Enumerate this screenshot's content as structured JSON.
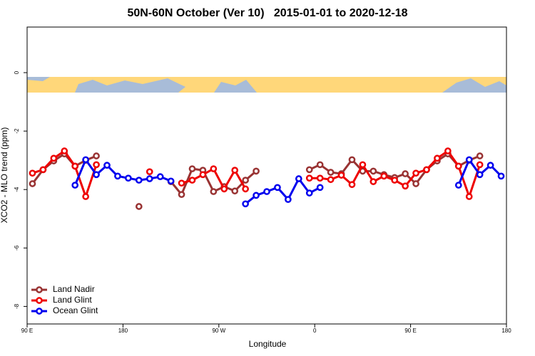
{
  "chart_data": {
    "type": "line",
    "title": "50N-60N October (Ver 10)   2015-01-01 to 2020-12-18",
    "x_label": "Longitude",
    "y_label": "XCO2 - MLO trend (ppm)",
    "x": [
      95,
      105,
      115,
      125,
      135,
      145,
      155,
      165,
      175,
      185,
      195,
      205,
      215,
      225,
      235,
      245,
      255,
      265,
      275,
      285,
      295,
      305,
      315,
      325,
      335,
      345,
      355,
      365,
      375,
      385,
      395,
      405,
      415,
      425,
      435,
      445,
      455,
      465,
      475,
      485,
      495,
      505,
      515,
      525,
      535
    ],
    "series": [
      {
        "name": "Land Nadir",
        "color": "#993333",
        "values": [
          -3.8,
          -3.32,
          -3.02,
          -2.78,
          -3.2,
          -3.0,
          -2.85,
          null,
          null,
          null,
          -4.58,
          null,
          null,
          -3.73,
          -4.17,
          -3.29,
          -3.34,
          -4.07,
          -3.9,
          -4.05,
          -3.68,
          -3.37,
          null,
          null,
          null,
          null,
          -3.32,
          -3.15,
          -3.41,
          -3.46,
          -2.98,
          -3.37,
          -3.37,
          -3.49,
          -3.59,
          -3.46,
          -3.8,
          -3.32,
          -3.02,
          -2.78,
          -3.2,
          -3.0,
          -2.85,
          null,
          null
        ]
      },
      {
        "name": "Land Glint",
        "color": "#ee0000",
        "values": [
          -3.44,
          -3.32,
          -2.93,
          -2.68,
          -3.2,
          -4.24,
          -3.15,
          null,
          null,
          null,
          null,
          -3.39,
          null,
          null,
          -3.78,
          -3.68,
          -3.49,
          -3.29,
          -3.98,
          -3.34,
          -3.98,
          null,
          null,
          null,
          null,
          null,
          -3.61,
          -3.61,
          -3.66,
          -3.51,
          -3.83,
          -3.15,
          -3.73,
          -3.54,
          -3.68,
          -3.88,
          -3.44,
          -3.32,
          -2.93,
          -2.68,
          -3.2,
          -4.24,
          -3.15,
          null,
          null
        ]
      },
      {
        "name": "Ocean Glint",
        "color": "#0000ee",
        "values": [
          null,
          null,
          null,
          null,
          -3.85,
          -2.98,
          -3.49,
          -3.17,
          -3.54,
          -3.61,
          -3.68,
          -3.63,
          -3.56,
          -3.71,
          null,
          null,
          null,
          null,
          null,
          null,
          -4.49,
          -4.2,
          -4.07,
          -3.93,
          -4.34,
          -3.63,
          -4.12,
          -3.93,
          null,
          null,
          null,
          null,
          null,
          null,
          null,
          null,
          null,
          null,
          null,
          null,
          -3.85,
          -2.98,
          -3.49,
          -3.17,
          -3.54
        ]
      }
    ],
    "xlim": [
      90,
      540
    ],
    "xticks": [
      {
        "value": 90,
        "label": "90 E"
      },
      {
        "value": 180,
        "label": "180"
      },
      {
        "value": 270,
        "label": "90 W"
      },
      {
        "value": 360,
        "label": "0"
      },
      {
        "value": 450,
        "label": "90 E"
      },
      {
        "value": 540,
        "label": "180"
      }
    ],
    "ylim": [
      -8.6,
      1.56
    ],
    "yticks": [
      0,
      -2,
      -4,
      -6,
      -8
    ],
    "legend": "bottom-left"
  }
}
